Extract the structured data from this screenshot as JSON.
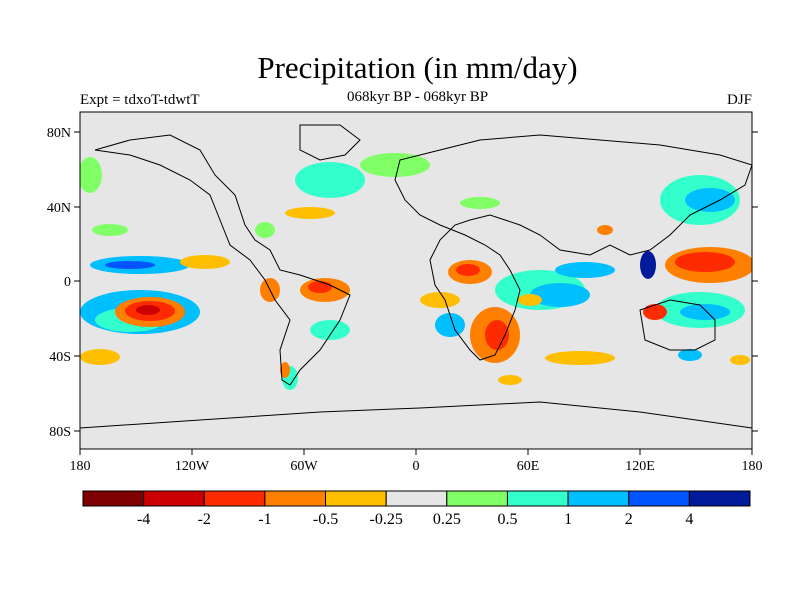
{
  "title": "Precipitation (in mm/day)",
  "subtitle": "068kyr BP - 068kyr BP",
  "experiment": "Expt = tdxoT-tdwtT",
  "season": "DJF",
  "lat_labels": [
    "80N",
    "40N",
    "0",
    "40S",
    "80S"
  ],
  "lon_labels": [
    "180",
    "120W",
    "60W",
    "0",
    "60E",
    "120E",
    "180"
  ],
  "colorbar": {
    "colors": [
      "#7f0000",
      "#cc0000",
      "#ff2b00",
      "#ff7f00",
      "#ffbf00",
      "#e6e6e6",
      "#80ff66",
      "#33ffcc",
      "#00bfff",
      "#0055ff",
      "#001a99"
    ],
    "labels": [
      "-4",
      "-2",
      "-1",
      "-0.5",
      "-0.25",
      "0.25",
      "0.5",
      "1",
      "2",
      "4"
    ]
  }
}
